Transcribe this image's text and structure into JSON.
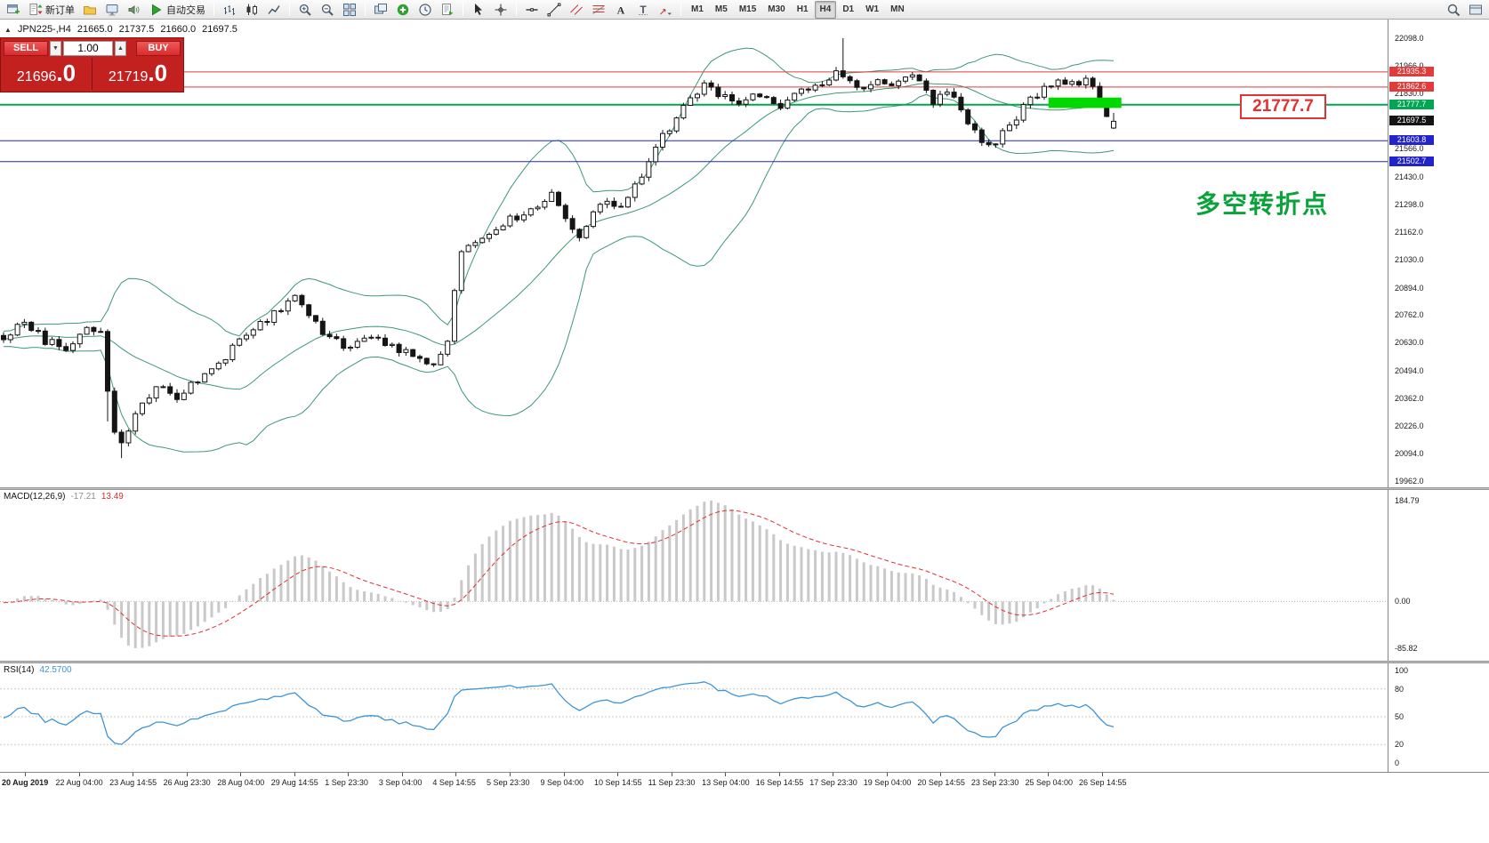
{
  "toolbar": {
    "new_order_label": "新订单",
    "autotrading_label": "自动交易",
    "timeframes": [
      "M1",
      "M5",
      "M15",
      "M30",
      "H1",
      "H4",
      "D1",
      "W1",
      "MN"
    ],
    "active_timeframe": "H4"
  },
  "chart": {
    "marker": "▲",
    "symbol_period": "JPN225-,H4",
    "open": "21665.0",
    "high": "21737.5",
    "low": "21660.0",
    "close": "21697.5",
    "annotation": "多空转折点",
    "price_callout": "21777.7",
    "price_axis": {
      "ticks": [
        "22098.0",
        "21966.0",
        "21830.0",
        "21698.0",
        "21566.0",
        "21430.0",
        "21298.0",
        "21162.0",
        "21030.0",
        "20894.0",
        "20762.0",
        "20630.0",
        "20494.0",
        "20362.0",
        "20226.0",
        "20094.0",
        "19962.0"
      ],
      "badges": [
        {
          "text": "21935.3",
          "price": 21935.3,
          "bg": "#e03c3c"
        },
        {
          "text": "21862.6",
          "price": 21862.6,
          "bg": "#e03c3c"
        },
        {
          "text": "21777.7",
          "price": 21777.7,
          "bg": "#00a651"
        },
        {
          "text": "21697.5",
          "price": 21697.5,
          "bg": "#141414"
        },
        {
          "text": "21603.8",
          "price": 21603.8,
          "bg": "#2323cc"
        },
        {
          "text": "21502.7",
          "price": 21502.7,
          "bg": "#2323cc"
        }
      ]
    }
  },
  "trade_panel": {
    "sell_label": "SELL",
    "buy_label": "BUY",
    "volume": "1.00",
    "spin_down": "▼",
    "spin_up": "▲",
    "sell_price_prefix": "21696",
    "sell_price_big": ".0",
    "buy_price_prefix": "21719",
    "buy_price_big": ".0"
  },
  "macd_panel": {
    "label": "MACD(12,26,9)",
    "value": "-17.21",
    "signal_value": "13.49",
    "axis": [
      "184.79",
      "0.00",
      "-85.82"
    ]
  },
  "rsi_panel": {
    "label": "RSI(14)",
    "value": "42.5700",
    "axis": [
      "100",
      "80",
      "50",
      "20",
      "0"
    ]
  },
  "time_axis": {
    "labels": [
      "20 Aug 2019",
      "22 Aug 04:00",
      "23 Aug 14:55",
      "26 Aug 23:30",
      "28 Aug 04:00",
      "29 Aug 14:55",
      "1 Sep 23:30",
      "3 Sep 04:00",
      "4 Sep 14:55",
      "5 Sep 23:30",
      "9 Sep 04:00",
      "10 Sep 14:55",
      "11 Sep 23:30",
      "13 Sep 04:00",
      "16 Sep 14:55",
      "17 Sep 23:30",
      "19 Sep 04:00",
      "20 Sep 14:55",
      "23 Sep 23:30",
      "25 Sep 04:00",
      "26 Sep 14:55"
    ]
  },
  "colors": {
    "panel_red": "#c32020",
    "button_red": "#d92b2b",
    "line_red": "#e03c3c",
    "line_green": "#00a651",
    "line_blue": "#2323cc",
    "annotation_green": "#0aa23a",
    "highlight_green": "#00d800",
    "bollinger_green": "#3d9970",
    "candle_dark": "#151515",
    "macd_histogram": "#c9c9c9",
    "macd_signal": "#e03030",
    "rsi_line": "#3d95d6",
    "current_price_bg": "#141414"
  },
  "chart_data": {
    "type": "candlestick",
    "symbol": "JPN225-",
    "timeframe": "H4",
    "bar_count": 161,
    "bar_spacing_px": 7.8,
    "price_top": 22098,
    "price_bottom": 19962,
    "last_bar": {
      "open": 21665.0,
      "high": 21737.5,
      "low": 21660.0,
      "close": 21697.5
    },
    "close_anchors": [
      [
        0,
        20650
      ],
      [
        3,
        20730
      ],
      [
        6,
        20640
      ],
      [
        9,
        20600
      ],
      [
        12,
        20710
      ],
      [
        14,
        20690
      ],
      [
        15,
        20380
      ],
      [
        16,
        20200
      ],
      [
        17,
        20130
      ],
      [
        19,
        20280
      ],
      [
        22,
        20420
      ],
      [
        25,
        20360
      ],
      [
        28,
        20450
      ],
      [
        31,
        20520
      ],
      [
        34,
        20640
      ],
      [
        37,
        20720
      ],
      [
        40,
        20800
      ],
      [
        42,
        20840
      ],
      [
        44,
        20760
      ],
      [
        47,
        20650
      ],
      [
        50,
        20600
      ],
      [
        53,
        20650
      ],
      [
        56,
        20620
      ],
      [
        59,
        20560
      ],
      [
        62,
        20540
      ],
      [
        64,
        20620
      ],
      [
        65,
        20900
      ],
      [
        66,
        21050
      ],
      [
        68,
        21120
      ],
      [
        71,
        21180
      ],
      [
        74,
        21240
      ],
      [
        77,
        21300
      ],
      [
        79,
        21350
      ],
      [
        81,
        21220
      ],
      [
        83,
        21130
      ],
      [
        85,
        21260
      ],
      [
        87,
        21330
      ],
      [
        89,
        21280
      ],
      [
        91,
        21380
      ],
      [
        93,
        21500
      ],
      [
        95,
        21620
      ],
      [
        97,
        21720
      ],
      [
        99,
        21800
      ],
      [
        101,
        21880
      ],
      [
        103,
        21820
      ],
      [
        106,
        21780
      ],
      [
        109,
        21830
      ],
      [
        112,
        21780
      ],
      [
        115,
        21840
      ],
      [
        118,
        21880
      ],
      [
        120,
        21930
      ],
      [
        122,
        21890
      ],
      [
        124,
        21860
      ],
      [
        126,
        21910
      ],
      [
        128,
        21870
      ],
      [
        130,
        21930
      ],
      [
        132,
        21880
      ],
      [
        134,
        21790
      ],
      [
        136,
        21830
      ],
      [
        138,
        21760
      ],
      [
        140,
        21640
      ],
      [
        142,
        21570
      ],
      [
        144,
        21640
      ],
      [
        146,
        21720
      ],
      [
        148,
        21800
      ],
      [
        150,
        21860
      ],
      [
        152,
        21900
      ],
      [
        154,
        21870
      ],
      [
        156,
        21900
      ],
      [
        157,
        21870
      ],
      [
        158,
        21800
      ],
      [
        159,
        21720
      ],
      [
        160,
        21697.5
      ]
    ],
    "spikes": {
      "15": {
        "low": 20250
      },
      "17": {
        "low": 20073
      },
      "121": {
        "high": 22098
      }
    },
    "indicators": {
      "bollinger": {
        "period": 20,
        "deviation": 2
      },
      "macd": {
        "fast": 12,
        "slow": 26,
        "signal": 9,
        "value": -17.21,
        "signal_value": 13.49,
        "scale_max": 184.79,
        "scale_min": -85.82
      },
      "rsi": {
        "period": 14,
        "value": 42.57,
        "levels": [
          80,
          50,
          20
        ]
      }
    },
    "horizontal_lines": [
      {
        "price": 21935.3,
        "color": "#e03c3c",
        "width": 1
      },
      {
        "price": 21862.6,
        "color": "#e03c3c",
        "width": 1
      },
      {
        "price": 21777.7,
        "color": "#00a651",
        "width": 2
      },
      {
        "price": 21603.8,
        "color": "#2323cc",
        "width": 1
      },
      {
        "price": 21502.7,
        "color": "#2323cc",
        "width": 1
      }
    ],
    "highlight_rect": {
      "x1_bar": 151,
      "x2_bar": 161.5,
      "price_top": 21812,
      "price_bottom": 21762,
      "color": "#00d800"
    }
  }
}
